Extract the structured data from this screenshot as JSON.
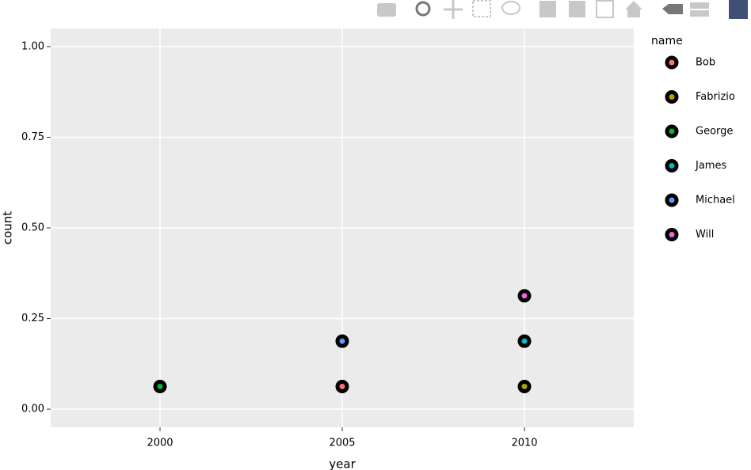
{
  "chart_data": {
    "type": "scatter",
    "x_label": "year",
    "y_label": "count",
    "legend_title": "name",
    "xlim": [
      1997,
      2013
    ],
    "xticks": [
      2000,
      2005,
      2010
    ],
    "ylim": [
      -0.05,
      1.05
    ],
    "yticks": [
      {
        "value": 0,
        "label": "0.00"
      },
      {
        "value": 0.25,
        "label": "0.25"
      },
      {
        "value": 0.5,
        "label": "0.50"
      },
      {
        "value": 0.75,
        "label": "0.75"
      },
      {
        "value": 1,
        "label": "1.00"
      }
    ],
    "grid": true,
    "series": [
      {
        "name": "Bob",
        "color": "#F8766D",
        "x": [
          2005
        ],
        "values": [
          0.0625
        ]
      },
      {
        "name": "Fabrizio",
        "color": "#B79F00",
        "x": [
          2010
        ],
        "values": [
          0.0625
        ]
      },
      {
        "name": "George",
        "color": "#00BA38",
        "x": [
          2000
        ],
        "values": [
          0.0625
        ]
      },
      {
        "name": "James",
        "color": "#00BFC4",
        "x": [
          2010
        ],
        "values": [
          0.1875
        ]
      },
      {
        "name": "Michael",
        "color": "#619CFF",
        "x": [
          2005
        ],
        "values": [
          0.1875
        ]
      },
      {
        "name": "Will",
        "color": "#F564E3",
        "x": [
          2010
        ],
        "values": [
          0.3125
        ]
      }
    ]
  }
}
